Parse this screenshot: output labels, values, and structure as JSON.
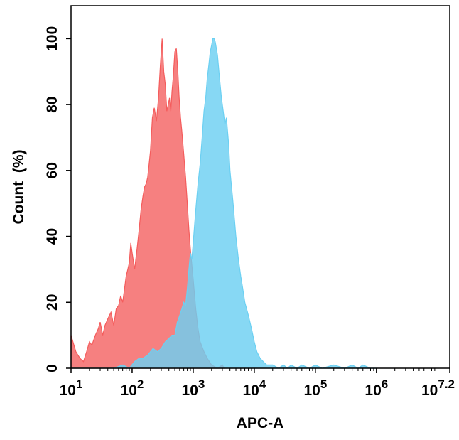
{
  "chart_data": {
    "type": "area",
    "title": "",
    "xlabel": "APC-A",
    "ylabel": "Count  (%)",
    "x_scale": "log",
    "xlim": [
      10,
      15848932
    ],
    "ylim": [
      0,
      110
    ],
    "x_ticks": [
      {
        "value": 10,
        "base": "10",
        "exp": "1"
      },
      {
        "value": 100,
        "base": "10",
        "exp": "2"
      },
      {
        "value": 1000,
        "base": "10",
        "exp": "3"
      },
      {
        "value": 10000,
        "base": "10",
        "exp": "4"
      },
      {
        "value": 100000,
        "base": "10",
        "exp": "5"
      },
      {
        "value": 1000000,
        "base": "10",
        "exp": "6"
      },
      {
        "value": 15848932,
        "base": "10",
        "exp": "7.2"
      }
    ],
    "y_ticks": [
      0,
      20,
      40,
      60,
      80,
      100
    ],
    "grid": false,
    "series": [
      {
        "color": "#f45c5c",
        "opacity": 0.78,
        "x": [
          10,
          12,
          14,
          16,
          18,
          20,
          22,
          25,
          28,
          30,
          33,
          36,
          40,
          45,
          50,
          55,
          60,
          65,
          70,
          75,
          80,
          85,
          90,
          95,
          100,
          110,
          120,
          130,
          140,
          150,
          160,
          170,
          180,
          190,
          200,
          215,
          230,
          250,
          270,
          290,
          310,
          330,
          350,
          370,
          390,
          410,
          430,
          450,
          470,
          500,
          530,
          560,
          590,
          620,
          650,
          700,
          750,
          800,
          850,
          900,
          1000,
          1100,
          1200,
          1300,
          1500,
          1700,
          2000,
          2500,
          3000,
          3200
        ],
        "y": [
          10,
          5,
          3,
          2,
          5,
          8,
          7,
          10,
          12,
          14,
          10,
          13,
          15,
          17,
          13,
          18,
          19,
          22,
          20,
          24,
          28,
          30,
          32,
          38,
          35,
          30,
          36,
          42,
          48,
          52,
          55,
          56,
          58,
          62,
          66,
          76,
          79,
          75,
          82,
          92,
          100,
          90,
          86,
          78,
          80,
          82,
          78,
          84,
          88,
          96,
          97,
          90,
          82,
          76,
          72,
          65,
          58,
          50,
          42,
          36,
          27,
          18,
          12,
          8,
          5,
          3,
          1,
          0,
          1,
          0
        ]
      },
      {
        "color": "#6cd0f2",
        "opacity": 0.82,
        "x": [
          10,
          30,
          50,
          70,
          90,
          110,
          130,
          150,
          180,
          220,
          260,
          300,
          350,
          400,
          450,
          500,
          550,
          600,
          650,
          700,
          750,
          800,
          850,
          900,
          950,
          1000,
          1100,
          1200,
          1300,
          1400,
          1500,
          1600,
          1700,
          1800,
          1900,
          2000,
          2100,
          2200,
          2300,
          2400,
          2500,
          2700,
          2900,
          3100,
          3300,
          3500,
          3800,
          4000,
          4500,
          5000,
          5500,
          6000,
          6500,
          7000,
          8000,
          9000,
          10000,
          11000,
          12500,
          14000,
          16000,
          20000,
          25000,
          30000,
          35000,
          40000,
          50000,
          60000,
          80000,
          100000,
          130000,
          200000,
          300000,
          400000,
          500000,
          600000,
          800000,
          1000000
        ],
        "y": [
          0,
          0,
          0,
          1,
          0,
          2,
          3,
          3,
          4,
          6,
          5,
          6,
          8,
          9,
          10,
          10,
          14,
          16,
          18,
          20,
          19,
          24,
          30,
          35,
          33,
          38,
          48,
          56,
          62,
          70,
          78,
          82,
          88,
          92,
          96,
          98,
          100,
          100,
          99,
          97,
          95,
          88,
          82,
          78,
          74,
          76,
          68,
          60,
          50,
          40,
          33,
          28,
          24,
          20,
          16,
          12,
          8,
          5,
          3,
          2,
          1,
          1,
          0,
          1,
          0,
          1,
          0,
          1,
          0,
          1,
          0,
          1,
          0,
          1,
          0,
          1,
          0,
          0
        ]
      }
    ]
  }
}
